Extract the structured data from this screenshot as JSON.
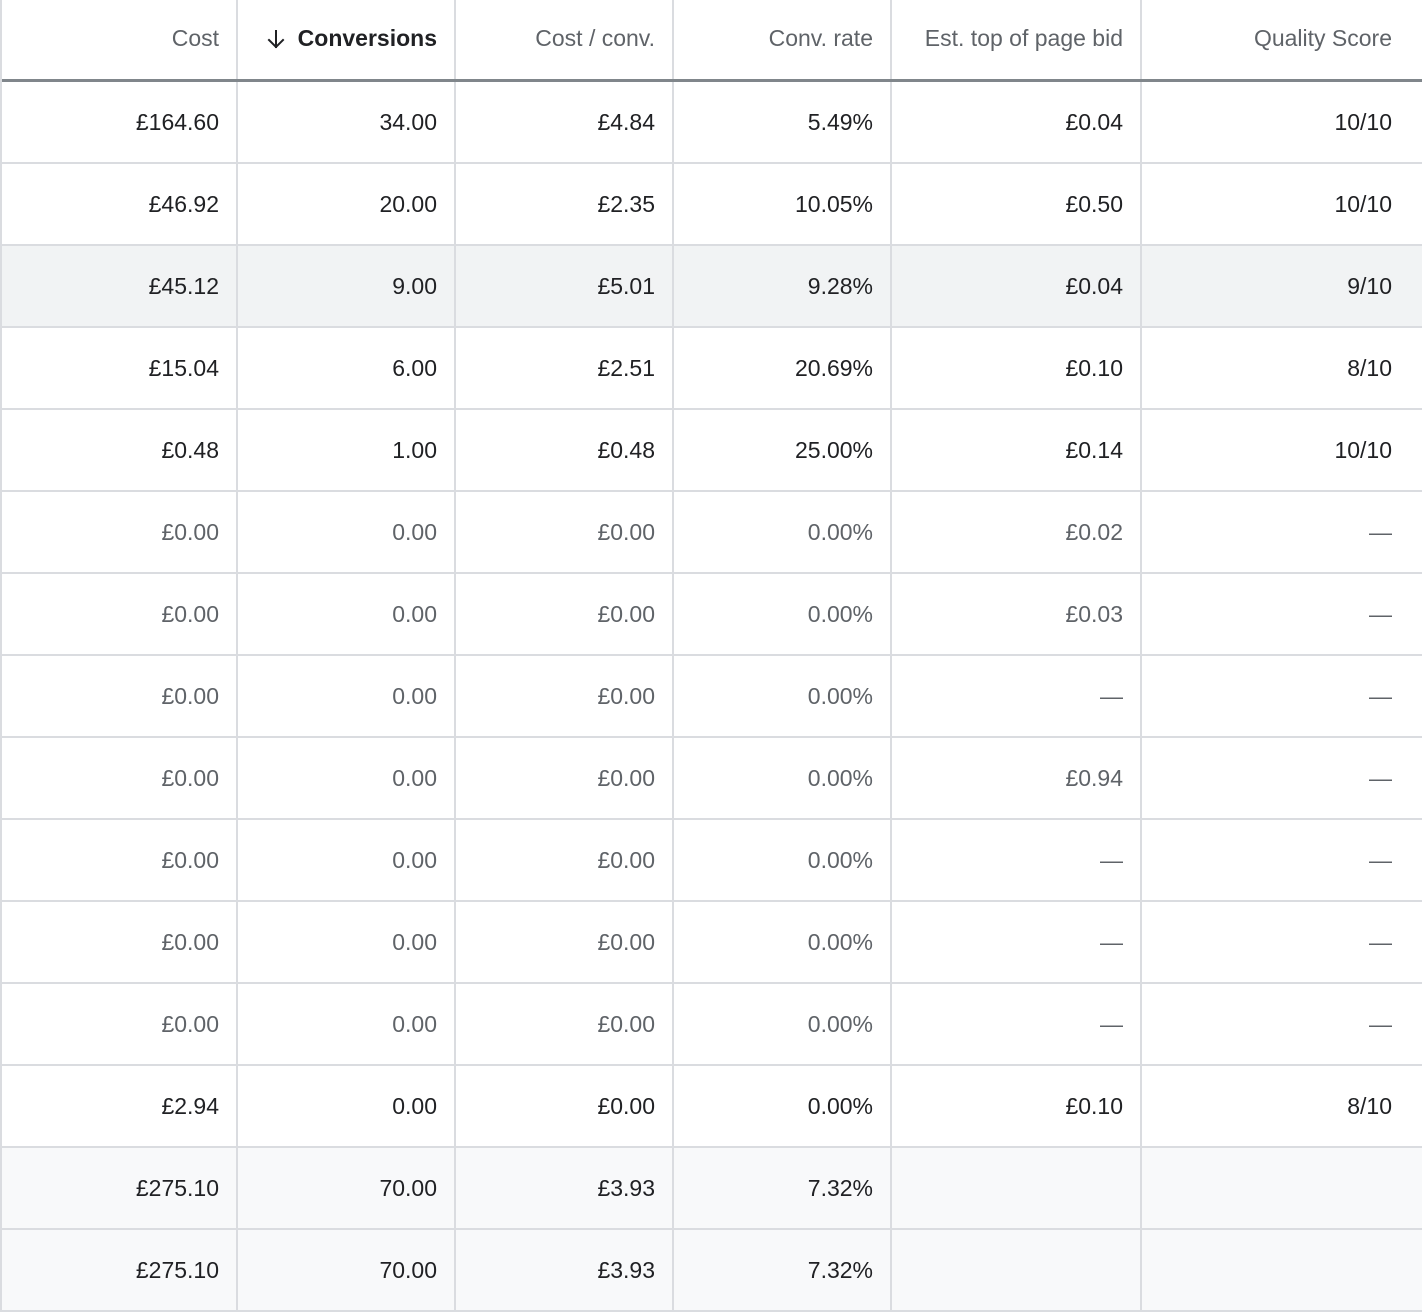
{
  "table": {
    "headers": [
      {
        "label": "Cost",
        "sorted": false
      },
      {
        "label": "Conversions",
        "sorted": true,
        "sort_direction": "descending"
      },
      {
        "label": "Cost / conv.",
        "sorted": false
      },
      {
        "label": "Conv. rate",
        "sorted": false
      },
      {
        "label": "Est. top of page bid",
        "sorted": false
      },
      {
        "label": "Quality Score",
        "sorted": false
      }
    ],
    "rows": [
      {
        "cells": [
          "£164.60",
          "34.00",
          "£4.84",
          "5.49%",
          "£0.04",
          "10/10"
        ],
        "muted": false,
        "highlight": false,
        "total": false
      },
      {
        "cells": [
          "£46.92",
          "20.00",
          "£2.35",
          "10.05%",
          "£0.50",
          "10/10"
        ],
        "muted": false,
        "highlight": false,
        "total": false
      },
      {
        "cells": [
          "£45.12",
          "9.00",
          "£5.01",
          "9.28%",
          "£0.04",
          "9/10"
        ],
        "muted": false,
        "highlight": true,
        "total": false
      },
      {
        "cells": [
          "£15.04",
          "6.00",
          "£2.51",
          "20.69%",
          "£0.10",
          "8/10"
        ],
        "muted": false,
        "highlight": false,
        "total": false
      },
      {
        "cells": [
          "£0.48",
          "1.00",
          "£0.48",
          "25.00%",
          "£0.14",
          "10/10"
        ],
        "muted": false,
        "highlight": false,
        "total": false
      },
      {
        "cells": [
          "£0.00",
          "0.00",
          "£0.00",
          "0.00%",
          "£0.02",
          "—"
        ],
        "muted": true,
        "highlight": false,
        "total": false
      },
      {
        "cells": [
          "£0.00",
          "0.00",
          "£0.00",
          "0.00%",
          "£0.03",
          "—"
        ],
        "muted": true,
        "highlight": false,
        "total": false
      },
      {
        "cells": [
          "£0.00",
          "0.00",
          "£0.00",
          "0.00%",
          "—",
          "—"
        ],
        "muted": true,
        "highlight": false,
        "total": false
      },
      {
        "cells": [
          "£0.00",
          "0.00",
          "£0.00",
          "0.00%",
          "£0.94",
          "—"
        ],
        "muted": true,
        "highlight": false,
        "total": false
      },
      {
        "cells": [
          "£0.00",
          "0.00",
          "£0.00",
          "0.00%",
          "—",
          "—"
        ],
        "muted": true,
        "highlight": false,
        "total": false
      },
      {
        "cells": [
          "£0.00",
          "0.00",
          "£0.00",
          "0.00%",
          "—",
          "—"
        ],
        "muted": true,
        "highlight": false,
        "total": false
      },
      {
        "cells": [
          "£0.00",
          "0.00",
          "£0.00",
          "0.00%",
          "—",
          "—"
        ],
        "muted": true,
        "highlight": false,
        "total": false
      },
      {
        "cells": [
          "£2.94",
          "0.00",
          "£0.00",
          "0.00%",
          "£0.10",
          "8/10"
        ],
        "muted": false,
        "highlight": false,
        "total": false
      },
      {
        "cells": [
          "£275.10",
          "70.00",
          "£3.93",
          "7.32%",
          "",
          ""
        ],
        "muted": false,
        "highlight": false,
        "total": true
      },
      {
        "cells": [
          "£275.10",
          "70.00",
          "£3.93",
          "7.32%",
          "",
          ""
        ],
        "muted": false,
        "highlight": false,
        "total": true
      }
    ]
  },
  "icons": {
    "sort": "arrow-down-icon"
  },
  "colors": {
    "text_primary": "#202124",
    "text_muted": "#5f6368",
    "grid_line": "#dadce0",
    "header_underline": "#80868b",
    "row_highlight": "#f1f3f4",
    "total_row": "#f8f9fa"
  }
}
